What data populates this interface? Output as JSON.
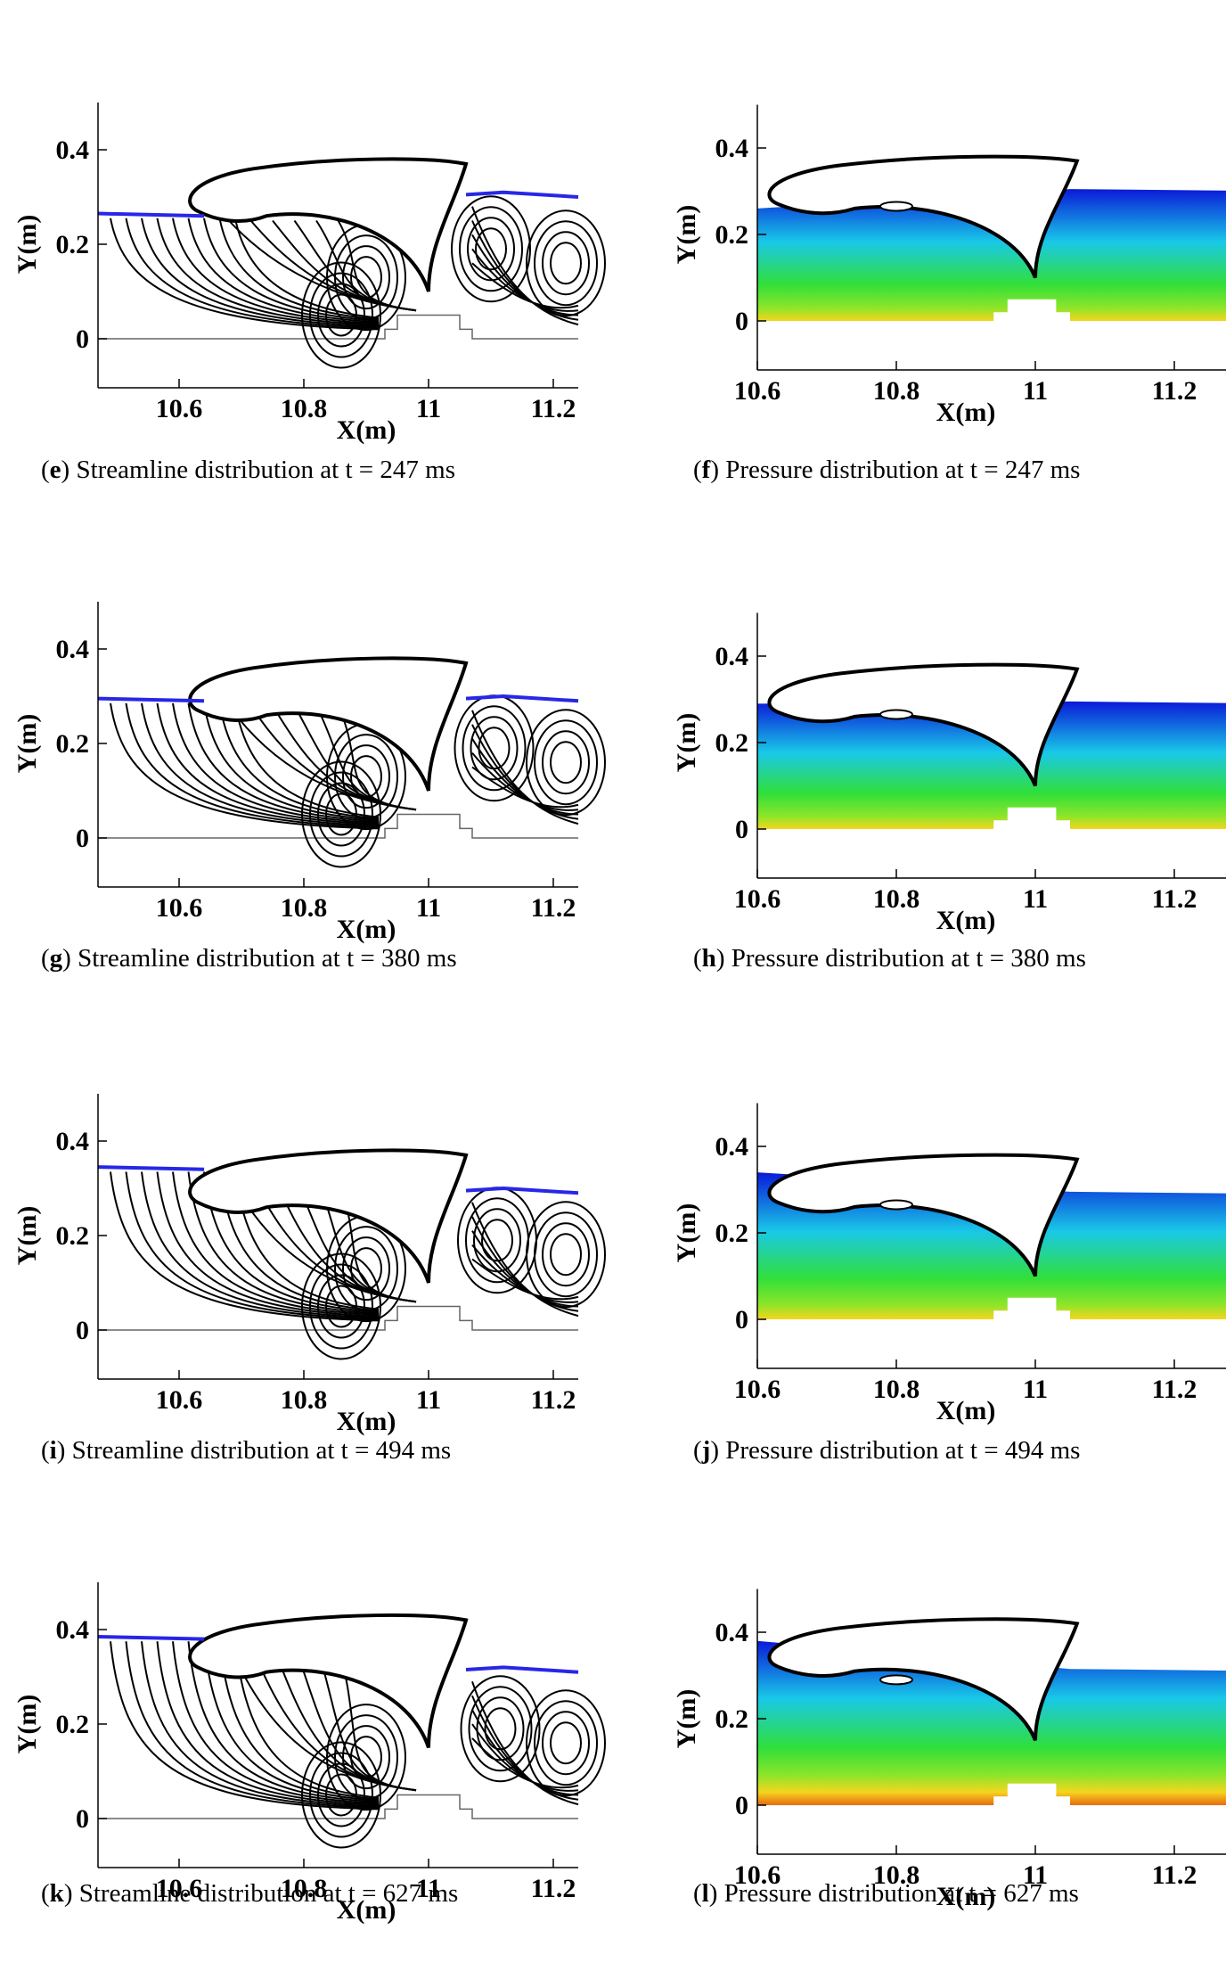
{
  "colors": {
    "free_surface": "#2727e8",
    "pressure_low": "#0a1ad8",
    "pressure_mid1": "#19c8e8",
    "pressure_mid2": "#30df3a",
    "pressure_high1": "#8de52a",
    "pressure_high2": "#f5d51e",
    "pressure_max": "#e86a12"
  },
  "axes": {
    "stream": {
      "xlabel": "X(m)",
      "ylabel": "Y(m)",
      "xticks": [
        "10.6",
        "10.8",
        "11",
        "11.2"
      ],
      "yticks": [
        "0",
        "0.2",
        "0.4"
      ]
    },
    "pressure": {
      "xlabel": "X(m)",
      "ylabel": "Y(m)",
      "xticks": [
        "10.6",
        "10.8",
        "11",
        "11.2"
      ],
      "yticks": [
        "0",
        "0.2",
        "0.4"
      ]
    }
  },
  "panels": [
    {
      "id": "e",
      "kind": "stream",
      "prefix": "(",
      "letter": "e",
      "suffix": ") Streamline distribution at t = 247 ms"
    },
    {
      "id": "f",
      "kind": "pressure",
      "prefix": "(",
      "letter": "f",
      "suffix": ") Pressure distribution at t = 247 ms"
    },
    {
      "id": "g",
      "kind": "stream",
      "prefix": "(",
      "letter": "g",
      "suffix": ") Streamline distribution at t = 380 ms"
    },
    {
      "id": "h",
      "kind": "pressure",
      "prefix": "(",
      "letter": "h",
      "suffix": ") Pressure distribution at t = 380 ms"
    },
    {
      "id": "i",
      "kind": "stream",
      "prefix": "(",
      "letter": "i",
      "suffix": ") Streamline distribution at t = 494 ms"
    },
    {
      "id": "j",
      "kind": "pressure",
      "prefix": "(",
      "letter": "j",
      "suffix": ") Pressure distribution at t = 494 ms"
    },
    {
      "id": "k",
      "kind": "stream",
      "prefix": "(",
      "letter": "k",
      "suffix": ") Streamline distribution at t = 627 ms"
    },
    {
      "id": "l",
      "kind": "pressure",
      "prefix": "(",
      "letter": "l",
      "suffix": ") Pressure distribution at t = 627 ms"
    }
  ]
}
